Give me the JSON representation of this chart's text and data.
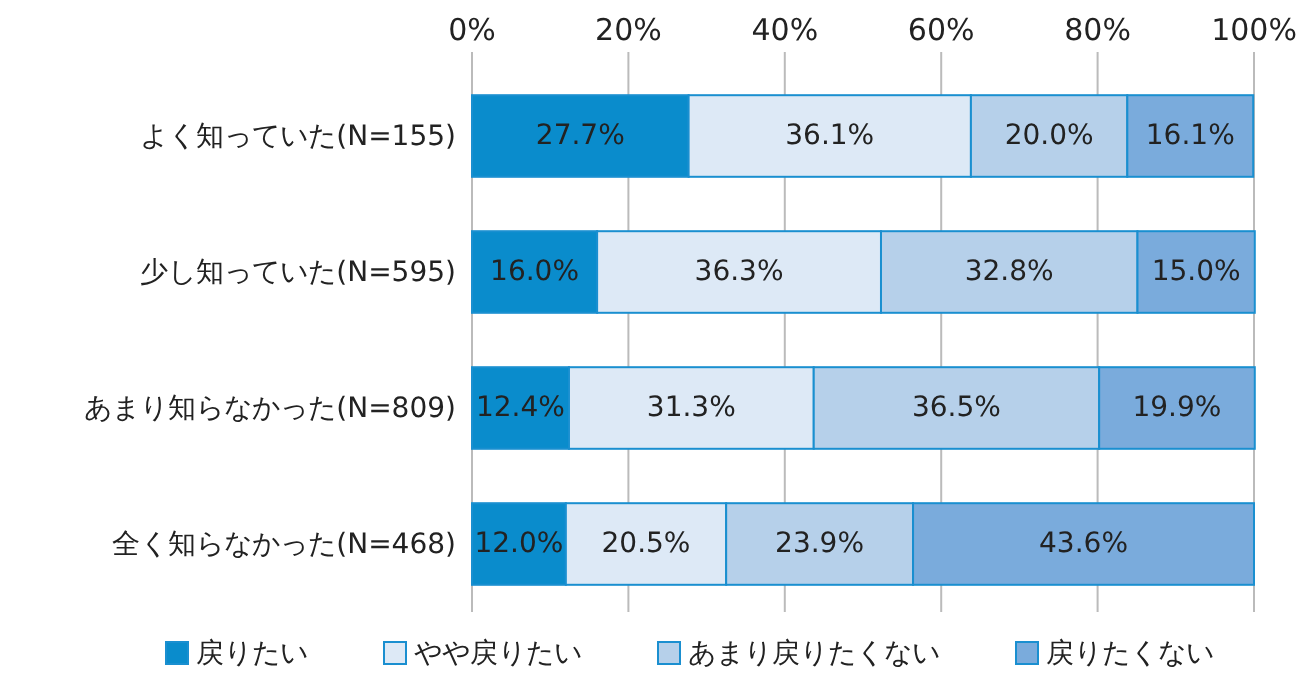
{
  "chart_data": {
    "type": "bar",
    "orientation": "horizontal",
    "stacked": true,
    "categories": [
      "よく知っていた(N=155)",
      "少し知っていた(N=595)",
      "あまり知らなかった(N=809)",
      "全く知らなかった(N=468)"
    ],
    "series": [
      {
        "name": "戻りたい",
        "color": "#0a8ccc",
        "values": [
          27.7,
          16.0,
          12.4,
          12.0
        ],
        "value_labels": [
          "27.7%",
          "16.0%",
          "12.4%",
          "12.0%"
        ]
      },
      {
        "name": "やや戻りたい",
        "color": "#dde9f6",
        "values": [
          36.1,
          36.3,
          31.3,
          20.5
        ],
        "value_labels": [
          "36.1%",
          "36.3%",
          "31.3%",
          "20.5%"
        ]
      },
      {
        "name": "あまり戻りたくない",
        "color": "#b6d0ea",
        "values": [
          20.0,
          32.8,
          36.5,
          23.9
        ],
        "value_labels": [
          "20.0%",
          "32.8%",
          "36.5%",
          "23.9%"
        ]
      },
      {
        "name": "戻りたくない",
        "color": "#7aabdc",
        "values": [
          16.1,
          15.0,
          19.9,
          43.6
        ],
        "value_labels": [
          "16.1%",
          "15.0%",
          "19.9%",
          "43.6%"
        ]
      }
    ],
    "xlim": [
      0,
      100
    ],
    "xticks": [
      {
        "value": 0,
        "label": "0%"
      },
      {
        "value": 20,
        "label": "20%"
      },
      {
        "value": 40,
        "label": "40%"
      },
      {
        "value": 60,
        "label": "60%"
      },
      {
        "value": 80,
        "label": "80%"
      },
      {
        "value": 100,
        "label": "100%"
      }
    ],
    "grid": "x",
    "legend": "bottom"
  }
}
